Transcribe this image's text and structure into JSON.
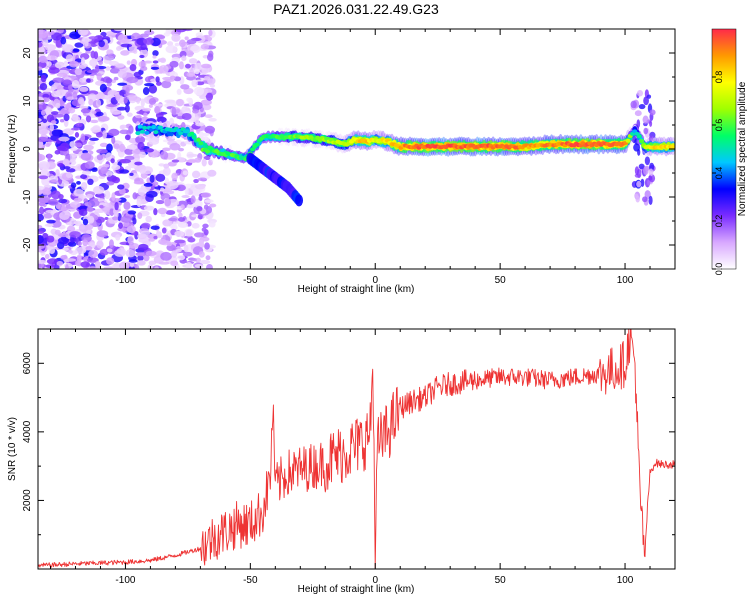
{
  "title": "PAZ1.2026.031.22.49.G23",
  "chart_data": [
    {
      "type": "heatmap",
      "xlabel": "Height of straight line (km)",
      "ylabel": "Frequency (Hz)",
      "xlim": [
        -135,
        120
      ],
      "ylim": [
        -25,
        25
      ],
      "xticks": [
        -100,
        -50,
        0,
        50,
        100
      ],
      "xtick_labels": [
        "-100",
        "-50",
        "0",
        "50",
        "100"
      ],
      "yticks": [
        -20,
        -10,
        0,
        10,
        20
      ],
      "ytick_labels": [
        "-20",
        "-10",
        "0",
        "10",
        "20"
      ],
      "colorbar": {
        "label": "Normalized spectral amplitude",
        "range": [
          0,
          1
        ],
        "ticks": [
          0.0,
          0.2,
          0.4,
          0.6,
          0.8
        ],
        "tick_labels": [
          "0.0",
          "0.2",
          "0.4",
          "0.6",
          "0.8"
        ],
        "colors": [
          "#ffffff",
          "#d8a8ff",
          "#7a2cff",
          "#0000ff",
          "#00c8ff",
          "#00ff66",
          "#a0ff00",
          "#ffff00",
          "#ff9900",
          "#ff2a4a"
        ]
      },
      "ridge": {
        "description_points": {
          "x": [
            -95,
            -85,
            -75,
            -68,
            -60,
            -52,
            -45,
            -38,
            -30,
            -20,
            -12,
            -8,
            -3,
            0,
            5,
            10,
            20,
            30,
            40,
            50,
            60,
            70,
            80,
            90,
            100,
            104,
            108,
            112,
            120
          ],
          "y": [
            4,
            4,
            3.5,
            0,
            -1,
            -2,
            2.5,
            2.5,
            2.5,
            2,
            1,
            2,
            1.5,
            2,
            1.5,
            0.5,
            0.5,
            0.5,
            0.5,
            0.5,
            0.5,
            1,
            1,
            1,
            1,
            4,
            0.5,
            0.5,
            0.5
          ],
          "amplitude": [
            0.45,
            0.45,
            0.5,
            0.6,
            0.6,
            0.55,
            0.55,
            0.6,
            0.65,
            0.65,
            0.7,
            0.8,
            0.85,
            0.75,
            0.8,
            0.9,
            0.95,
            0.95,
            0.95,
            0.95,
            0.9,
            0.9,
            0.95,
            0.95,
            0.9,
            0.4,
            0.7,
            0.8,
            0.8
          ]
        },
        "branch": {
          "x": [
            -50,
            -45,
            -40,
            -35,
            -30
          ],
          "y": [
            -2,
            -4,
            -6,
            -8,
            -11
          ]
        }
      }
    },
    {
      "type": "line",
      "xlabel": "Height of straight line (km)",
      "ylabel": "SNR (10 * v/v)",
      "xlim": [
        -135,
        120
      ],
      "ylim": [
        0,
        7000
      ],
      "xticks": [
        -100,
        -50,
        0,
        50,
        100
      ],
      "xtick_labels": [
        "-100",
        "-50",
        "0",
        "50",
        "100"
      ],
      "yticks": [
        2000,
        4000,
        6000
      ],
      "ytick_labels": [
        "2000",
        "4000",
        "6000"
      ],
      "series": [
        {
          "name": "SNR",
          "color": "#ee3333",
          "x": [
            -135,
            -120,
            -100,
            -90,
            -80,
            -70,
            -65,
            -60,
            -55,
            -50,
            -45,
            -42,
            -41,
            -40,
            -35,
            -30,
            -25,
            -20,
            -15,
            -10,
            -5,
            -2,
            -1,
            0,
            1,
            5,
            10,
            15,
            20,
            25,
            30,
            40,
            50,
            60,
            70,
            80,
            90,
            95,
            100,
            102,
            104,
            106,
            108,
            109,
            110,
            112,
            115,
            120
          ],
          "y": [
            100,
            150,
            200,
            250,
            400,
            600,
            900,
            1100,
            1300,
            1300,
            1700,
            2700,
            4700,
            2400,
            2800,
            2900,
            3000,
            3100,
            3300,
            3500,
            3700,
            4000,
            5900,
            800,
            3600,
            4000,
            4700,
            4900,
            5000,
            5300,
            5400,
            5500,
            5600,
            5600,
            5500,
            5600,
            5700,
            5800,
            6000,
            6800,
            6000,
            2000,
            400,
            1800,
            2800,
            3100,
            3050,
            3050
          ]
        }
      ]
    }
  ]
}
